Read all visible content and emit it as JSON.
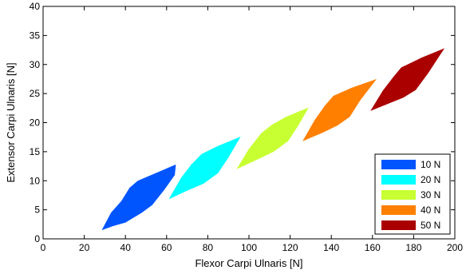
{
  "chart_data": {
    "type": "area",
    "title": "",
    "xlabel": "Flexor Carpi Ulnaris [N]",
    "ylabel": "Extensor Carpi Ulnaris [N]",
    "xlim": [
      0,
      200
    ],
    "ylim": [
      0,
      40
    ],
    "xticks": [
      0,
      20,
      40,
      60,
      80,
      100,
      120,
      140,
      160,
      180,
      200
    ],
    "yticks": [
      0,
      5,
      10,
      15,
      20,
      25,
      30,
      35,
      40
    ],
    "grid": false,
    "legend_position": "bottom-right",
    "series": [
      {
        "name": "10 N",
        "color": "#0055ff",
        "polygon": [
          [
            28.5,
            1.5
          ],
          [
            33,
            4.5
          ],
          [
            38,
            6.5
          ],
          [
            42,
            8.8
          ],
          [
            46,
            10
          ],
          [
            56,
            11.5
          ],
          [
            64.5,
            12.8
          ],
          [
            64,
            11
          ],
          [
            59,
            8.5
          ],
          [
            53,
            5.8
          ],
          [
            48,
            4.5
          ],
          [
            40,
            2.8
          ],
          [
            34,
            2.2
          ],
          [
            28.5,
            1.5
          ]
        ]
      },
      {
        "name": "20 N",
        "color": "#00ffff",
        "polygon": [
          [
            61,
            6.8
          ],
          [
            67,
            10.5
          ],
          [
            72,
            12.8
          ],
          [
            77,
            14.6
          ],
          [
            85,
            16
          ],
          [
            96,
            17.6
          ],
          [
            90,
            14
          ],
          [
            85,
            11.3
          ],
          [
            78,
            9.5
          ],
          [
            70,
            8.3
          ],
          [
            61,
            6.8
          ]
        ]
      },
      {
        "name": "30 N",
        "color": "#c8ff33",
        "polygon": [
          [
            94,
            12
          ],
          [
            100,
            15.5
          ],
          [
            106,
            18.2
          ],
          [
            111,
            19.6
          ],
          [
            118,
            21
          ],
          [
            129,
            22.6
          ],
          [
            124,
            19.5
          ],
          [
            119,
            16.8
          ],
          [
            112,
            15
          ],
          [
            105,
            13.8
          ],
          [
            94,
            12
          ]
        ]
      },
      {
        "name": "40 N",
        "color": "#ff8000",
        "polygon": [
          [
            126,
            16.8
          ],
          [
            132,
            20.5
          ],
          [
            137,
            23
          ],
          [
            141,
            24.6
          ],
          [
            150,
            26
          ],
          [
            162,
            27.5
          ],
          [
            154,
            23.8
          ],
          [
            149,
            21
          ],
          [
            143,
            19.5
          ],
          [
            136,
            18.3
          ],
          [
            126,
            16.8
          ]
        ]
      },
      {
        "name": "50 N",
        "color": "#aa0000",
        "polygon": [
          [
            159,
            22
          ],
          [
            165,
            25.5
          ],
          [
            170,
            27.8
          ],
          [
            174,
            29.5
          ],
          [
            184,
            31.2
          ],
          [
            195,
            32.8
          ],
          [
            187,
            28.5
          ],
          [
            181,
            25.6
          ],
          [
            175,
            24.3
          ],
          [
            168,
            23.3
          ],
          [
            159,
            22
          ]
        ]
      }
    ]
  }
}
